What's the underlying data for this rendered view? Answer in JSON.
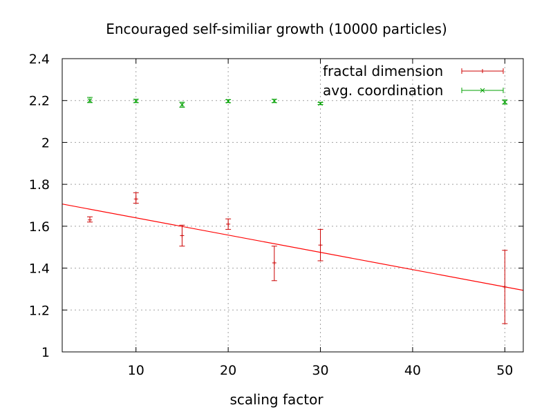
{
  "chart_data": {
    "type": "scatter",
    "title": "Encouraged self-similiar growth (10000 particles)",
    "xlabel": "scaling factor",
    "ylabel": "",
    "xlim": [
      2,
      52
    ],
    "ylim": [
      1,
      2.4
    ],
    "x_ticks": [
      10,
      20,
      30,
      40,
      50
    ],
    "y_ticks": [
      1,
      1.2,
      1.4,
      1.6,
      1.8,
      2,
      2.2,
      2.4
    ],
    "x_tick_labels": [
      "10",
      "20",
      "30",
      "40",
      "50"
    ],
    "y_tick_labels": [
      "1",
      "1.2",
      "1.4",
      "1.6",
      "1.8",
      "2",
      "2.2",
      "2.4"
    ],
    "grid": true,
    "legend_position": "top-right",
    "series": [
      {
        "name": "fractal dimension",
        "color": "#cc0000",
        "marker": "plus",
        "points": [
          {
            "x": 5,
            "y": 1.63,
            "ylow": 1.62,
            "yhigh": 1.645
          },
          {
            "x": 10,
            "y": 1.73,
            "ylow": 1.71,
            "yhigh": 1.76
          },
          {
            "x": 15,
            "y": 1.555,
            "ylow": 1.505,
            "yhigh": 1.605
          },
          {
            "x": 20,
            "y": 1.61,
            "ylow": 1.585,
            "yhigh": 1.635
          },
          {
            "x": 25,
            "y": 1.425,
            "ylow": 1.34,
            "yhigh": 1.505
          },
          {
            "x": 30,
            "y": 1.51,
            "ylow": 1.435,
            "yhigh": 1.585
          },
          {
            "x": 50,
            "y": 1.31,
            "ylow": 1.135,
            "yhigh": 1.485
          }
        ]
      },
      {
        "name": "avg. coordination",
        "color": "#00a000",
        "marker": "cross",
        "points": [
          {
            "x": 5,
            "y": 2.2,
            "ylow": 2.19,
            "yhigh": 2.215
          },
          {
            "x": 10,
            "y": 2.198,
            "ylow": 2.19,
            "yhigh": 2.206
          },
          {
            "x": 15,
            "y": 2.18,
            "ylow": 2.168,
            "yhigh": 2.192
          },
          {
            "x": 20,
            "y": 2.197,
            "ylow": 2.19,
            "yhigh": 2.204
          },
          {
            "x": 25,
            "y": 2.198,
            "ylow": 2.19,
            "yhigh": 2.206
          },
          {
            "x": 30,
            "y": 2.186,
            "ylow": 2.181,
            "yhigh": 2.191
          },
          {
            "x": 50,
            "y": 2.193,
            "ylow": 2.183,
            "yhigh": 2.203
          }
        ]
      }
    ],
    "fit_line": {
      "color": "#ff0000",
      "x": [
        2,
        52
      ],
      "y": [
        1.706,
        1.294
      ]
    }
  }
}
